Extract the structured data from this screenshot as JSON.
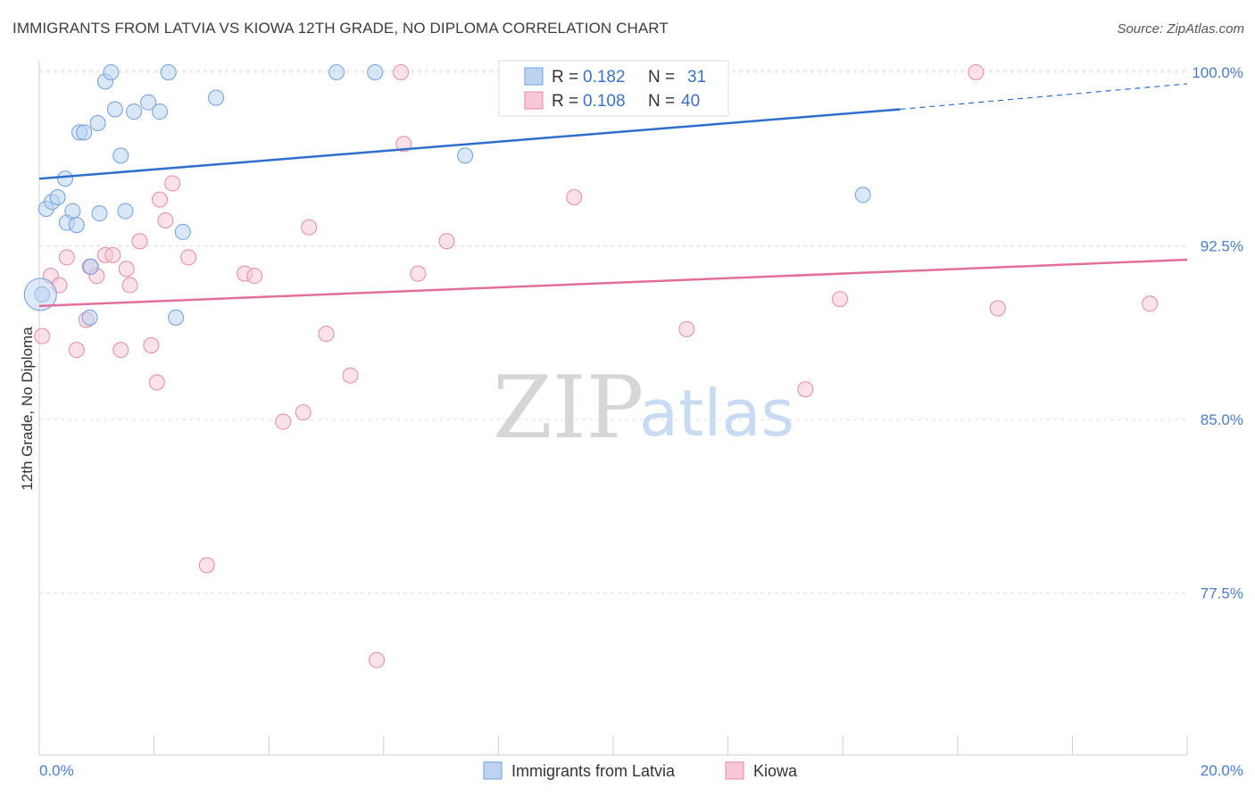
{
  "title": "IMMIGRANTS FROM LATVIA VS KIOWA 12TH GRADE, NO DIPLOMA CORRELATION CHART",
  "source": "Source: ZipAtlas.com",
  "watermark": {
    "zip": "ZIP",
    "atlas": "atlas"
  },
  "legend": {
    "rows": [
      {
        "r_label": "R =",
        "r_value": "0.182",
        "n_label": "N =",
        "n_value": "31"
      },
      {
        "r_label": "R =",
        "r_value": "0.108",
        "n_label": "N =",
        "n_value": "40"
      }
    ]
  },
  "colors": {
    "blue_fill": "#bcd4f2",
    "blue_stroke": "#6f9fdc",
    "blue_line": "#2f6fcb",
    "pink_fill": "#f8c8d6",
    "pink_stroke": "#e58aa6",
    "pink_line": "#e0709a"
  },
  "chart_data": {
    "type": "scatter",
    "title": "IMMIGRANTS FROM LATVIA VS KIOWA 12TH GRADE, NO DIPLOMA CORRELATION CHART",
    "xlabel": "",
    "ylabel": "12th Grade, No Diploma",
    "xlim": [
      0,
      20
    ],
    "ylim": [
      70.5,
      100.5
    ],
    "x_tick_labels": [
      "0.0%",
      "20.0%"
    ],
    "y_ticks": [
      77.5,
      85.0,
      92.5,
      100.0
    ],
    "y_tick_labels": [
      "77.5%",
      "85.0%",
      "92.5%",
      "100.0%"
    ],
    "grid": true,
    "legend_placement": "bottom",
    "series": [
      {
        "name": "Immigrants from Latvia",
        "color": "#6f9fdc",
        "points": [
          [
            0.05,
            90.4
          ],
          [
            0.12,
            94.1
          ],
          [
            0.22,
            94.4
          ],
          [
            0.32,
            94.6
          ],
          [
            0.45,
            95.4
          ],
          [
            0.48,
            93.5
          ],
          [
            0.58,
            94.0
          ],
          [
            0.65,
            93.4
          ],
          [
            0.7,
            97.4
          ],
          [
            0.78,
            97.4
          ],
          [
            0.88,
            89.4
          ],
          [
            0.9,
            91.6
          ],
          [
            1.02,
            97.8
          ],
          [
            1.05,
            93.9
          ],
          [
            1.15,
            99.6
          ],
          [
            1.25,
            100.0
          ],
          [
            1.32,
            98.4
          ],
          [
            1.42,
            96.4
          ],
          [
            1.5,
            94.0
          ],
          [
            1.65,
            98.3
          ],
          [
            1.9,
            98.7
          ],
          [
            2.1,
            98.3
          ],
          [
            2.25,
            100.0
          ],
          [
            2.38,
            89.4
          ],
          [
            2.5,
            93.1
          ],
          [
            3.08,
            98.9
          ],
          [
            5.18,
            100.0
          ],
          [
            5.85,
            100.0
          ],
          [
            7.42,
            96.4
          ],
          [
            14.35,
            94.7
          ],
          [
            0.02,
            90.4
          ]
        ],
        "trend": {
          "x": [
            0,
            15.0
          ],
          "y": [
            95.4,
            98.4
          ],
          "dashed_to": [
            20,
            99.5
          ]
        }
      },
      {
        "name": "Kiowa",
        "color": "#e58aa6",
        "points": [
          [
            0.05,
            88.6
          ],
          [
            0.2,
            91.2
          ],
          [
            0.35,
            90.8
          ],
          [
            0.48,
            92.0
          ],
          [
            0.65,
            88.0
          ],
          [
            0.82,
            89.3
          ],
          [
            0.88,
            91.6
          ],
          [
            1.0,
            91.2
          ],
          [
            1.15,
            92.1
          ],
          [
            1.28,
            92.1
          ],
          [
            1.42,
            88.0
          ],
          [
            1.52,
            91.5
          ],
          [
            1.58,
            90.8
          ],
          [
            1.75,
            92.7
          ],
          [
            1.95,
            88.2
          ],
          [
            2.05,
            86.6
          ],
          [
            2.1,
            94.5
          ],
          [
            2.2,
            93.6
          ],
          [
            2.32,
            95.2
          ],
          [
            2.6,
            92.0
          ],
          [
            2.92,
            78.7
          ],
          [
            3.58,
            91.3
          ],
          [
            3.75,
            91.2
          ],
          [
            4.25,
            84.9
          ],
          [
            4.6,
            85.3
          ],
          [
            4.7,
            93.3
          ],
          [
            5.0,
            88.7
          ],
          [
            5.42,
            86.9
          ],
          [
            5.88,
            74.6
          ],
          [
            6.3,
            100.0
          ],
          [
            6.35,
            96.9
          ],
          [
            6.6,
            91.3
          ],
          [
            7.1,
            92.7
          ],
          [
            9.32,
            94.6
          ],
          [
            11.28,
            88.9
          ],
          [
            13.35,
            86.3
          ],
          [
            13.95,
            90.2
          ],
          [
            16.32,
            100.0
          ],
          [
            16.7,
            89.8
          ],
          [
            19.35,
            90.0
          ]
        ],
        "trend": {
          "x": [
            0,
            20
          ],
          "y": [
            89.9,
            91.9
          ]
        }
      }
    ]
  }
}
